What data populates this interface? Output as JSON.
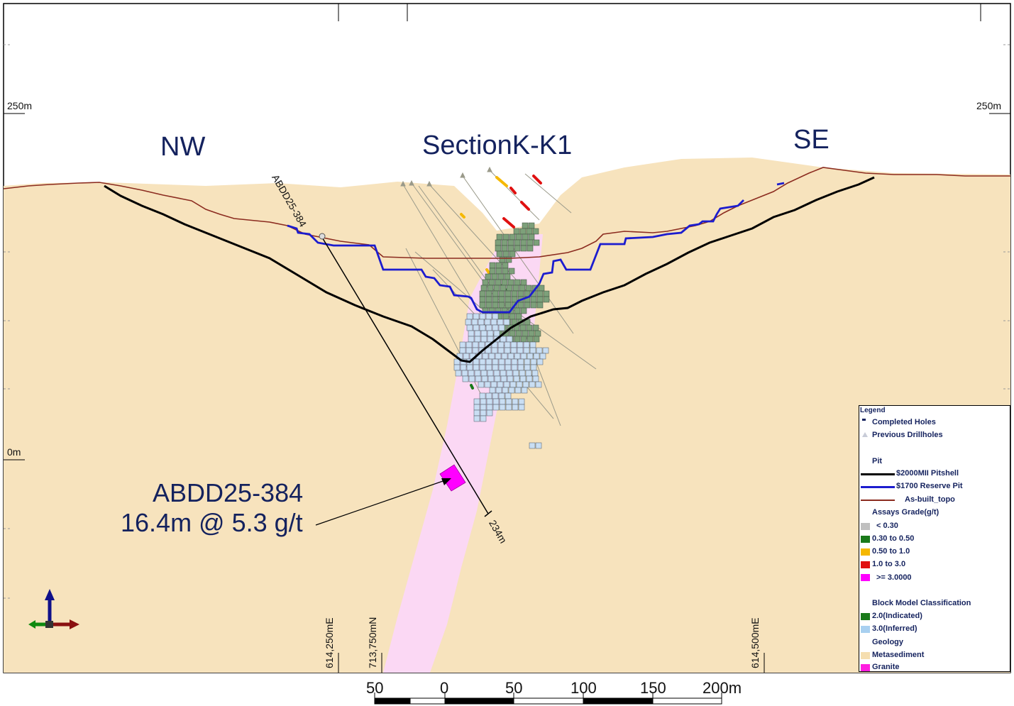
{
  "section": {
    "title": "SectionK-K1",
    "nw_label": "NW",
    "se_label": "SE"
  },
  "elevations": {
    "left_top": "250m",
    "right_top": "250m",
    "left_zero": "0m"
  },
  "coordinates": {
    "easting_1": "614,250mE",
    "northing_1": "713,750mN",
    "easting_2": "614,500mE"
  },
  "drillhole": {
    "id": "ABDD25-384",
    "end_depth": "234m",
    "callout_id": "ABDD25-384",
    "callout_result": "16.4m @ 5.3 g/t"
  },
  "scale_bar": {
    "labels": [
      "50",
      "0",
      "50",
      "100",
      "150",
      "200m"
    ]
  },
  "legend": {
    "title": "Legend",
    "completed_holes": "Completed Holes",
    "previous_drillholes": "Previous Drillholes",
    "pit_header": "Pit",
    "pitshell": "$2000MII Pitshell",
    "reserve_pit": "$1700 Reserve Pit",
    "as_built": "As-built_topo",
    "assays_header": "Assays Grade(g/t)",
    "assay_bins": [
      {
        "label": "< 0.30",
        "color": "#c0c0c0"
      },
      {
        "label": "0.30 to 0.50",
        "color": "#1a7a1a"
      },
      {
        "label": "0.50 to 1.0",
        "color": "#f5b800"
      },
      {
        "label": "1.0 to 3.0",
        "color": "#e01010"
      },
      {
        "label": ">= 3.0000",
        "color": "#ff00ff"
      }
    ],
    "block_header": "Block Model Classification",
    "block_classes": [
      {
        "label": "2.0(Indicated)",
        "color": "#1a7a1a"
      },
      {
        "label": "3.0(Inferred)",
        "color": "#a8d0f0"
      }
    ],
    "geology_header": "Geology",
    "geology": [
      {
        "label": "Metasediment",
        "color": "#f5deb0"
      },
      {
        "label": "Granite",
        "color": "#ff1ee0"
      }
    ]
  },
  "colors": {
    "metasediment": "#f7e3bd",
    "granite_zone": "#fbd8f4",
    "pitshell": "#000000",
    "reserve_pit": "#1c1ccf",
    "topo": "#8b2b1f",
    "indicated": "#7da07a",
    "inferred": "#c9def3"
  }
}
